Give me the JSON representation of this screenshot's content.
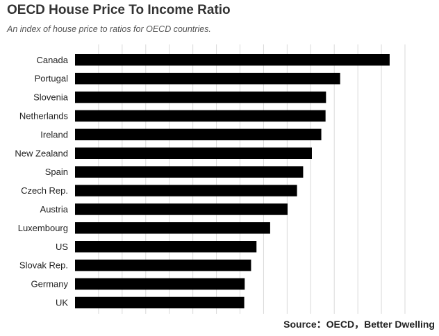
{
  "title": "OECD House Price To Income Ratio",
  "subtitle": "An index of house price to ratios for OECD countries.",
  "source": "Source：OECD，Better Dwelling",
  "colors": {
    "bar": "#000000",
    "grid": "#d9d9d9",
    "background": "#ffffff",
    "label": "#222222"
  },
  "chart_data": {
    "type": "bar",
    "orientation": "horizontal",
    "title": "OECD House Price To Income Ratio",
    "subtitle": "An index of house price to ratios for OECD countries.",
    "categories": [
      "Canada",
      "Portugal",
      "Slovenia",
      "Netherlands",
      "Ireland",
      "New Zealand",
      "Spain",
      "Czech Rep.",
      "Austria",
      "Luxembourg",
      "US",
      "Slovak Rep.",
      "Germany",
      "UK"
    ],
    "values": [
      133.5,
      112.5,
      106.5,
      106.3,
      104.5,
      100.5,
      96.8,
      94.2,
      90.2,
      82.8,
      77.0,
      74.7,
      72.0,
      71.8
    ],
    "xlim": [
      0,
      140
    ],
    "grid": true,
    "xlabel": "",
    "ylabel": ""
  }
}
